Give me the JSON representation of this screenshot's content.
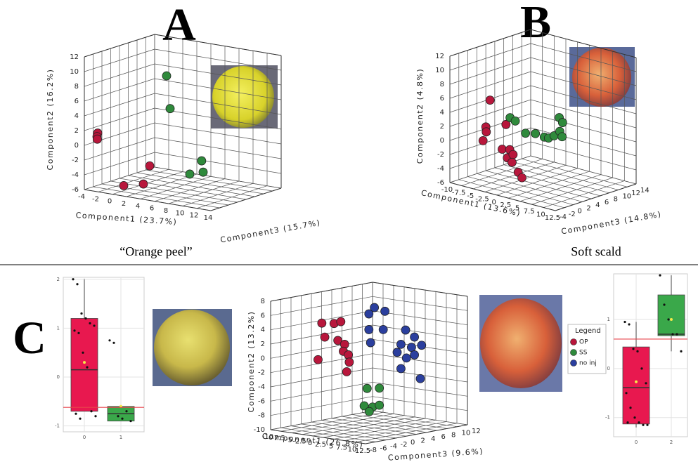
{
  "panel_labels": [
    "A",
    "B",
    "C"
  ],
  "captions": [
    "“Orange peel”",
    "Soft scald"
  ],
  "chart_data": [
    {
      "type": "scatter3d",
      "xlabel": "Component1 (23.7%)",
      "ylabel": "Component2 (16.2%)",
      "zlabel": "Component3 (15.7%)",
      "xlim": [
        -4,
        14
      ],
      "ylim": [
        -6,
        12
      ],
      "zlim": [
        0,
        14
      ],
      "xticks": [
        -4,
        -2,
        0,
        2,
        4,
        6,
        8,
        10,
        12,
        14
      ],
      "yticks": [
        12,
        10,
        8,
        6,
        4,
        2,
        0,
        -2,
        -4,
        -6
      ],
      "series": [
        {
          "color": "#b8173c",
          "x": [
            -3.1,
            -3.2,
            -3.3,
            -0.4,
            1.4,
            2.3
          ],
          "y": [
            1.5,
            1,
            0.6,
            -5.5,
            -5.3,
            -2.7
          ],
          "z": [
            1.4,
            1.4,
            1.6,
            2.8,
            4.2,
            4.2
          ]
        },
        {
          "color": "#2f8a3c",
          "x": [
            3.2,
            3.2,
            5,
            5.9,
            5.9
          ],
          "y": [
            9.2,
            4.6,
            -4.3,
            -4.2,
            -2.6
          ],
          "z": [
            6.3,
            7,
            8.4,
            9.8,
            9.5
          ]
        }
      ]
    },
    {
      "type": "scatter3d",
      "xlabel": "Component1 (13.6%)",
      "ylabel": "Component2 (4.8%)",
      "zlabel": "Component3 (14.8%)",
      "xlim": [
        -10,
        12.5
      ],
      "ylim": [
        -6,
        12
      ],
      "zlim": [
        -4,
        14
      ],
      "xticks": [
        -10,
        -7.5,
        -5,
        -2.5,
        0,
        2.5,
        5,
        7.5,
        10,
        12.5
      ],
      "yticks": [
        12,
        10,
        8,
        6,
        4,
        2,
        0,
        -2,
        -4,
        -6
      ],
      "zticks": [
        -4,
        -2,
        0,
        2,
        4,
        6,
        8,
        10,
        12,
        14
      ],
      "series": [
        {
          "color": "#b8173c",
          "x": [
            -6.6,
            -7.3,
            -7.5,
            -8,
            -4.2,
            -2.4,
            -3,
            -1.5,
            -2.1,
            -0.6,
            0.3,
            -3.3
          ],
          "y": [
            5.2,
            1.3,
            0.5,
            -0.8,
            -1.4,
            -1.1,
            -2.4,
            -1.6,
            -2.9,
            -4,
            -4.6,
            2.3
          ],
          "z": [
            1.4,
            1.2,
            1.5,
            1.3,
            1.6,
            1.4,
            1.5,
            1.2,
            1.6,
            1.4,
            1.3,
            1.5
          ]
        },
        {
          "color": "#2f8a3c",
          "x": [
            -7.5,
            -6.2,
            -4.4,
            -2.1,
            -0.3,
            0.8,
            1.9,
            2.8,
            3.7,
            3,
            3.7
          ],
          "y": [
            1.4,
            1.2,
            -0.3,
            0.1,
            -0.1,
            0,
            0.5,
            3.2,
            2.7,
            1.3,
            0.7
          ],
          "z": [
            6.8,
            6.6,
            7,
            6.8,
            6.9,
            6.7,
            6.8,
            7,
            6.8,
            6.9,
            6.7
          ]
        }
      ]
    },
    {
      "type": "box",
      "categories": [
        "0",
        "1"
      ],
      "ylim": [
        -1.12,
        2.04
      ],
      "yticks": [
        2,
        1,
        0,
        -1
      ],
      "hline": -0.62,
      "hline_color": "#e8444c",
      "boxes": [
        {
          "color": "#e8184f",
          "whisker_low": -0.7,
          "q1": -0.7,
          "median": 0.15,
          "q3": 1.2,
          "whisker_high": 2.0,
          "mean": 0.3,
          "points": [
            2.0,
            1.9,
            1.3,
            1.2,
            1.1,
            1.05,
            0.95,
            0.9,
            0.5,
            0.2,
            -0.7,
            -0.8,
            -0.75,
            -0.85
          ]
        },
        {
          "color": "#3aa84a",
          "whisker_low": -0.9,
          "q1": -0.9,
          "median": -0.75,
          "q3": -0.6,
          "whisker_high": -0.6,
          "mean": -0.6,
          "points": [
            0.75,
            0.7,
            -0.8,
            -0.85,
            -0.7,
            -0.9
          ]
        }
      ]
    },
    {
      "type": "scatter3d",
      "xlabel": "Component1 (26.8%)",
      "ylabel": "Component2 (13.2%)",
      "zlabel": "Component3 (9.6%)",
      "xlim": [
        -10,
        12.5
      ],
      "ylim": [
        -10,
        8
      ],
      "zlim": [
        -8,
        12
      ],
      "xticks": [
        -10,
        -7.5,
        -5,
        -2.5,
        0,
        2.5,
        5,
        7.5,
        10,
        12.5
      ],
      "yticks": [
        8,
        6,
        4,
        2,
        0,
        -2,
        -4,
        -6,
        -8,
        -10
      ],
      "zticks": [
        -8,
        -6,
        -4,
        -2,
        0,
        2,
        4,
        6,
        8,
        10,
        12
      ],
      "legend_title": "Legend",
      "series": [
        {
          "name": "OP",
          "color": "#b8173c",
          "x": [
            -3.9,
            -1,
            0.6,
            -3.2,
            -0.1,
            1.5,
            1.2,
            2.4,
            2.6,
            2,
            -4.8
          ],
          "y": [
            4.8,
            5,
            5.4,
            2.9,
            2.7,
            2.3,
            1.3,
            0.9,
            -0.1,
            -1.5,
            -0.4
          ],
          "z": [
            -3,
            -3,
            -3,
            -3,
            -3,
            -3,
            -3,
            -3,
            -3,
            -3,
            -3
          ]
        },
        {
          "name": "SS",
          "color": "#2f8a3c",
          "x": [
            0.8,
            3.7,
            0.1,
            2.1,
            3.7,
            1.3
          ],
          "y": [
            -4.6,
            -4.3,
            -7.1,
            -7.1,
            -6.7,
            -7.8
          ],
          "z": [
            2,
            2,
            2,
            2,
            2,
            2
          ]
        },
        {
          "name": "no inj",
          "color": "#2b3f9e",
          "x": [
            0.1,
            2.6,
            -1.2,
            -1.2,
            -0.8,
            2.2,
            7.5,
            9.6,
            11.3,
            8.9,
            6.4,
            5.5,
            7.7,
            9.6,
            6.4,
            11
          ],
          "y": [
            6.4,
            6.1,
            5.4,
            3.2,
            1.4,
            3.5,
            3.9,
            3.1,
            2.1,
            1.6,
            1.8,
            0.6,
            0,
            0.6,
            -1.6,
            -2.6
          ],
          "z": [
            4,
            4,
            4,
            4,
            4,
            4,
            4,
            4,
            4,
            4,
            4,
            4,
            4,
            4,
            4,
            4
          ]
        }
      ]
    },
    {
      "type": "box",
      "categories": [
        "0",
        "2"
      ],
      "ylim": [
        -1.39,
        1.93
      ],
      "yticks": [
        1,
        0,
        -1
      ],
      "hline": 0.6,
      "hline_color": "#e8444c",
      "boxes": [
        {
          "color": "#e8184f",
          "whisker_low": -1.2,
          "q1": -1.13,
          "median": -0.39,
          "q3": 0.44,
          "whisker_high": 0.95,
          "mean": -0.27,
          "points": [
            0.95,
            0.9,
            0.4,
            0.35,
            0,
            -0.3,
            -0.5,
            -0.8,
            -1.0,
            -1.1,
            -1.15,
            -1.15,
            -1.1
          ]
        },
        {
          "color": "#3aa84a",
          "whisker_low": 0.35,
          "q1": 0.67,
          "median": 0.7,
          "q3": 1.5,
          "whisker_high": 1.9,
          "mean": 1.0,
          "points": [
            1.9,
            1.3,
            1.0,
            0.7,
            0.7,
            0.35
          ]
        }
      ]
    }
  ]
}
